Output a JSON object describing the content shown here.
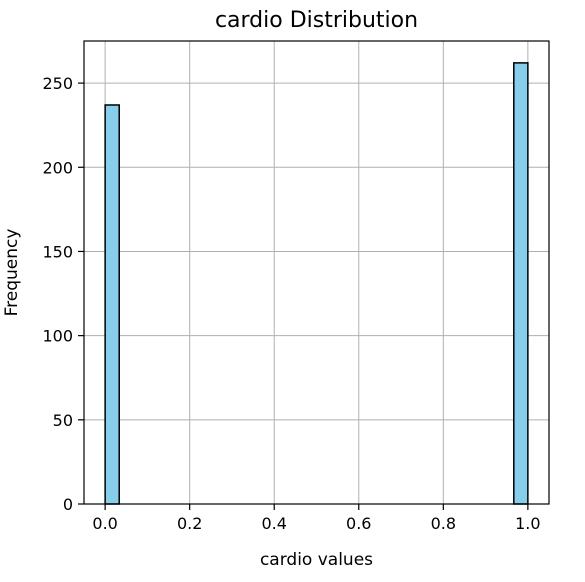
{
  "chart_data": {
    "type": "bar",
    "title": "cardio Distribution",
    "xlabel": "cardio values",
    "ylabel": "Frequency",
    "xlim": [
      -0.05,
      1.05
    ],
    "ylim": [
      0,
      275
    ],
    "xticks": [
      0.0,
      0.2,
      0.4,
      0.6,
      0.8,
      1.0
    ],
    "xtick_labels": [
      "0.0",
      "0.2",
      "0.4",
      "0.6",
      "0.8",
      "1.0"
    ],
    "yticks": [
      0,
      50,
      100,
      150,
      200,
      250
    ],
    "ytick_labels": [
      "0",
      "50",
      "100",
      "150",
      "200",
      "250"
    ],
    "grid": true,
    "bins": [
      {
        "x_start": 0.0,
        "x_end": 0.0333,
        "value": 237
      },
      {
        "x_start": 0.9667,
        "x_end": 1.0,
        "value": 262
      }
    ],
    "colors": {
      "bar_fill": "#87ceeb",
      "bar_edge": "#000000",
      "grid": "#b0b0b0",
      "axes": "#000000"
    }
  }
}
